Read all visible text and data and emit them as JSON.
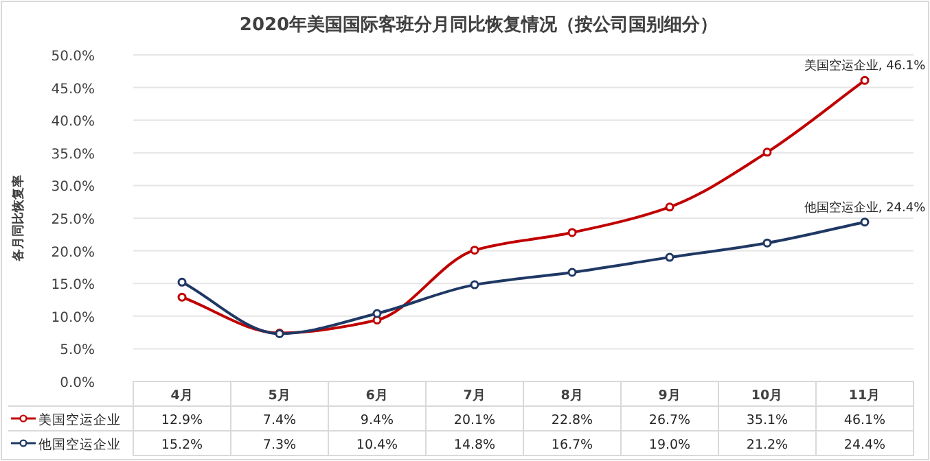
{
  "chart_data": {
    "type": "line",
    "title": "2020年美国国际客班分月同比恢复情况（按公司国别细分）",
    "ylabel": "各月同比恢复率",
    "categories": [
      "4月",
      "5月",
      "6月",
      "7月",
      "8月",
      "9月",
      "10月",
      "11月"
    ],
    "series": [
      {
        "name": "美国空运企业",
        "color": "#c00000",
        "values": [
          12.9,
          7.4,
          9.4,
          20.1,
          22.8,
          26.7,
          35.1,
          46.1
        ],
        "value_labels": [
          "12.9%",
          "7.4%",
          "9.4%",
          "20.1%",
          "22.8%",
          "26.7%",
          "35.1%",
          "46.1%"
        ]
      },
      {
        "name": "他国空运企业",
        "color": "#1f3864",
        "values": [
          15.2,
          7.3,
          10.4,
          14.8,
          16.7,
          19.0,
          21.2,
          24.4
        ],
        "value_labels": [
          "15.2%",
          "7.3%",
          "10.4%",
          "14.8%",
          "16.7%",
          "19.0%",
          "21.2%",
          "24.4%"
        ]
      }
    ],
    "ylim": [
      0,
      50
    ],
    "yticks": [
      {
        "value": 0,
        "label": "0.0%"
      },
      {
        "value": 5,
        "label": "5.0%"
      },
      {
        "value": 10,
        "label": "10.0%"
      },
      {
        "value": 15,
        "label": "15.0%"
      },
      {
        "value": 20,
        "label": "20.0%"
      },
      {
        "value": 25,
        "label": "25.0%"
      },
      {
        "value": 30,
        "label": "30.0%"
      },
      {
        "value": 35,
        "label": "35.0%"
      },
      {
        "value": 40,
        "label": "40.0%"
      },
      {
        "value": 45,
        "label": "45.0%"
      },
      {
        "value": 50,
        "label": "50.0%"
      }
    ],
    "grid": "y",
    "marker": "circle",
    "line_style": "solid",
    "legend": "bottom",
    "annotations": [
      {
        "text": "美国空运企业, 46.1%",
        "x": "11月",
        "y": 46.1
      },
      {
        "text": "他国空运企业, 24.4%",
        "x": "11月",
        "y": 24.4
      }
    ]
  }
}
